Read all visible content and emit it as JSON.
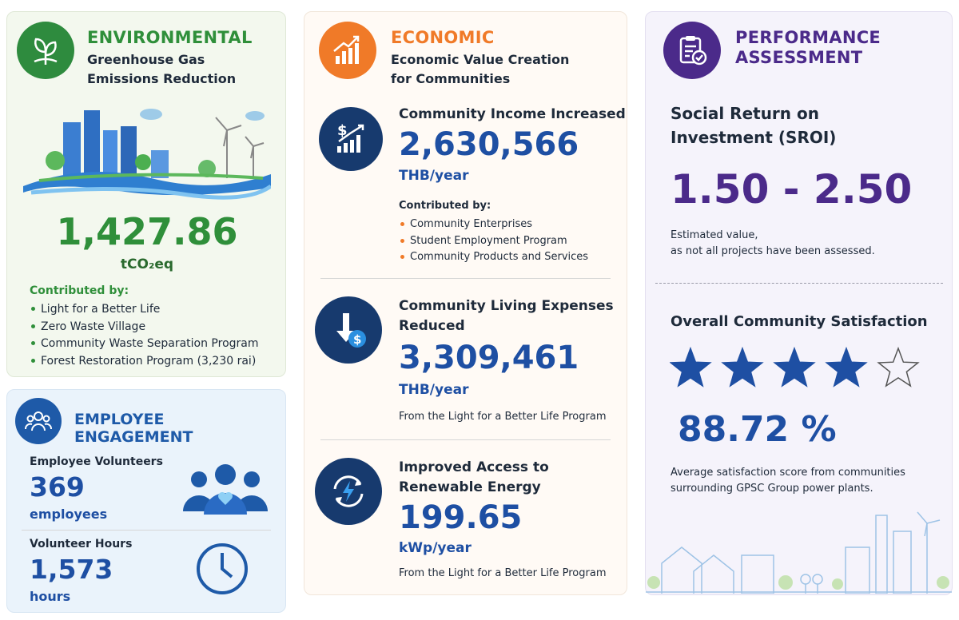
{
  "environmental": {
    "title": "ENVIRONMENTAL",
    "subtitle": "Greenhouse Gas Emissions Reduction",
    "value": "1,427.86",
    "unit": "tCO₂eq",
    "contributed_label": "Contributed by:",
    "items": [
      "Light for a Better Life",
      "Zero Waste Village",
      "Community Waste Separation Program",
      "Forest Restoration Program (3,230 rai)"
    ]
  },
  "employee": {
    "title": "EMPLOYEE ENGAGEMENT",
    "volunteers": {
      "label": "Employee Volunteers",
      "value": "369",
      "unit": "employees"
    },
    "hours": {
      "label": "Volunteer Hours",
      "value": "1,573",
      "unit": "hours"
    }
  },
  "economic": {
    "title": "ECONOMIC",
    "subtitle": "Economic Value Creation for Communities",
    "income": {
      "title": "Community Income Increased",
      "value": "2,630,566",
      "unit": "THB/year",
      "contributed_label": "Contributed by:",
      "items": [
        "Community Enterprises",
        "Student Employment Program",
        "Community Products and Services"
      ]
    },
    "expenses": {
      "title": "Community Living Expenses Reduced",
      "value": "3,309,461",
      "unit": "THB/year",
      "note": "From the Light for a Better Life Program"
    },
    "energy": {
      "title": "Improved Access to Renewable Energy",
      "value": "199.65",
      "unit": "kWp/year",
      "note": "From the Light for a Better Life Program"
    }
  },
  "performance": {
    "title": "PERFORMANCE ASSESSMENT",
    "sroi": {
      "title": "Social Return on Investment (SROI)",
      "value": "1.50 - 2.50",
      "note": [
        "Estimated value,",
        "as not all projects have been assessed."
      ]
    },
    "satisfaction": {
      "title": "Overall Community Satisfaction",
      "stars_filled": 4,
      "stars_total": 5,
      "value": "88.72 %",
      "note": "Average satisfaction score from communities surrounding GPSC Group power plants."
    }
  }
}
